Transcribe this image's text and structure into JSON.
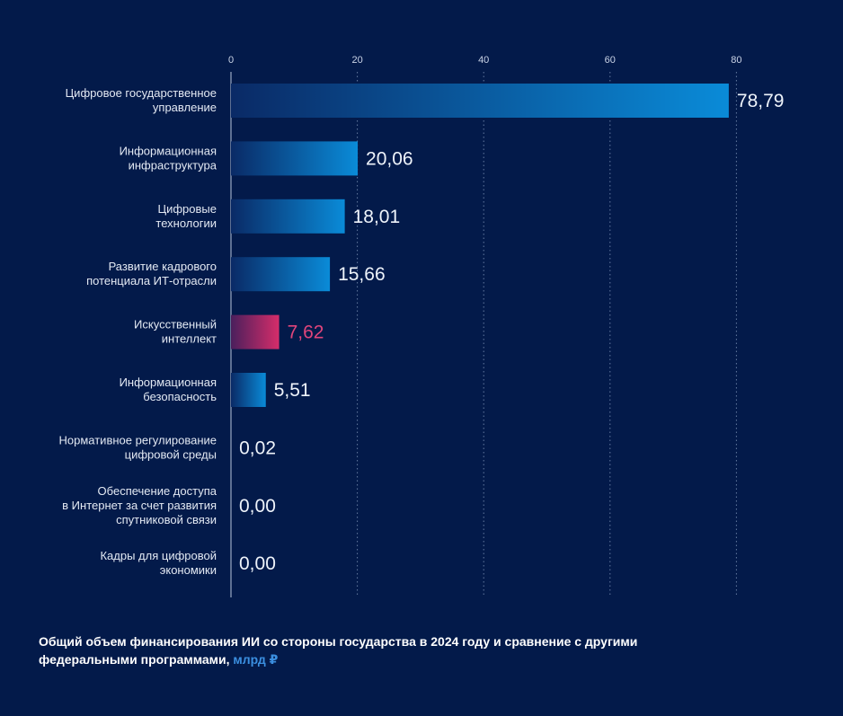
{
  "chart_data": {
    "type": "bar",
    "orientation": "horizontal",
    "categories": [
      [
        "Цифровое государственное",
        "управление"
      ],
      [
        "Информационная",
        "инфраструктура"
      ],
      [
        "Цифровые",
        "технологии"
      ],
      [
        "Развитие кадрового",
        "потенциала ИТ-отрасли"
      ],
      [
        "Искусственный",
        "интеллект"
      ],
      [
        "Информационная",
        "безопасность"
      ],
      [
        "Нормативное регулирование",
        "цифровой среды"
      ],
      [
        "Обеспечение доступа",
        "в Интернет за счет развития",
        "спутниковой связи"
      ],
      [
        "Кадры для цифровой",
        "экономики"
      ]
    ],
    "values": [
      78.79,
      20.06,
      18.01,
      15.66,
      7.62,
      5.51,
      0.02,
      0.0,
      0.0
    ],
    "value_labels": [
      "78,79",
      "20,06",
      "18,01",
      "15,66",
      "7,62",
      "5,51",
      "0,02",
      "0,00",
      "0,00"
    ],
    "highlight_index": 4,
    "xlim": [
      0,
      80
    ],
    "xticks": [
      0,
      20,
      40,
      60,
      80
    ],
    "xtick_labels": [
      "0",
      "20",
      "40",
      "60",
      "80"
    ],
    "grid": true,
    "colors": {
      "bar_start": "#0a2a66",
      "bar_end": "#0a8bd8",
      "highlight_start": "#4a1f5c",
      "highlight_end": "#d62d6a",
      "highlight_text": "#e0457b"
    }
  },
  "caption": {
    "text": "Общий объем финансирования ИИ со стороны государства в 2024 году и сравнение с другими федеральными программами,",
    "unit": "млрд ₽"
  }
}
